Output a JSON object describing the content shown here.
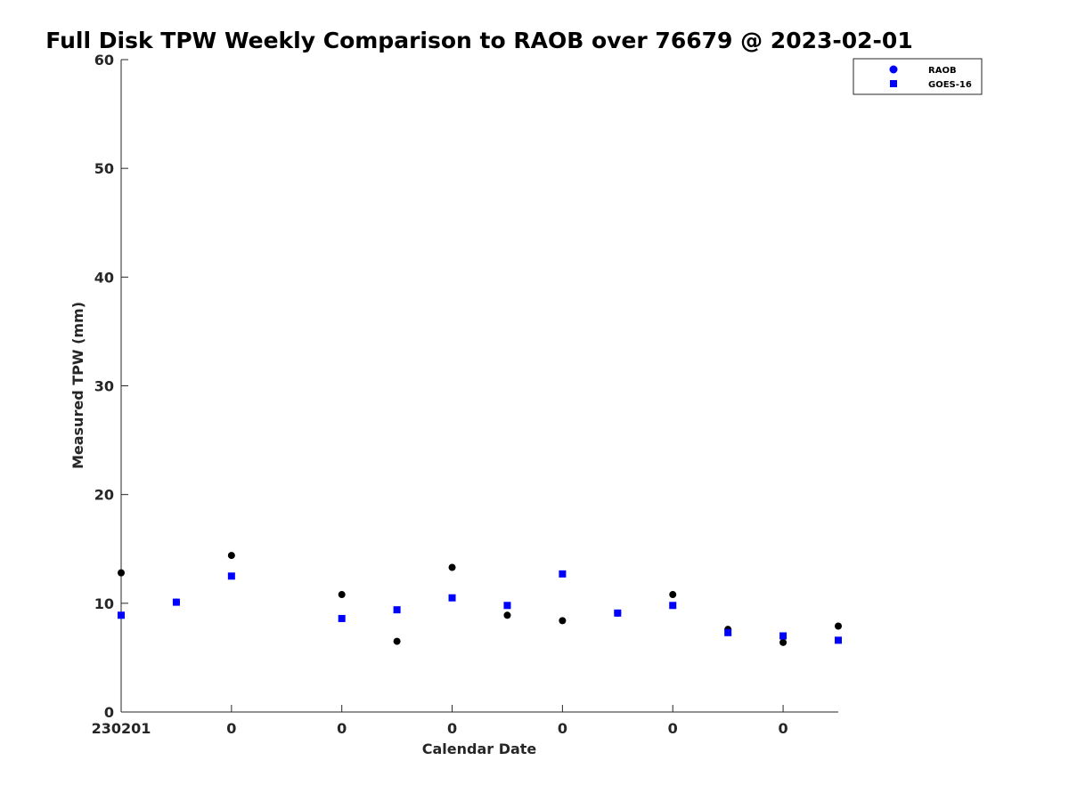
{
  "chart_data": {
    "type": "scatter",
    "title": "Full Disk TPW Weekly Comparison to RAOB over 76679 @ 2023-02-01",
    "xlabel": "Calendar Date",
    "ylabel": "Measured TPW (mm)",
    "ylim": [
      0,
      60
    ],
    "yticks": [
      0,
      10,
      20,
      30,
      40,
      50,
      60
    ],
    "xlim": [
      0,
      13
    ],
    "xticks": [
      0,
      2,
      4,
      6,
      8,
      10,
      12
    ],
    "xtick_labels": [
      "230201",
      "0",
      "0",
      "0",
      "0",
      "0",
      "0"
    ],
    "grid": false,
    "legend_position": "top-right",
    "series": [
      {
        "name": "RAOB",
        "marker": "circle",
        "color": "#000000",
        "legend_color": "#0000ff",
        "x": [
          0,
          1,
          2,
          4,
          5,
          6,
          7,
          8,
          9,
          10,
          11,
          12,
          13
        ],
        "values": [
          12.8,
          10.1,
          14.4,
          10.8,
          6.5,
          13.3,
          8.9,
          8.4,
          9.1,
          10.8,
          7.6,
          6.4,
          7.9
        ]
      },
      {
        "name": "GOES-16",
        "marker": "square",
        "color": "#0000ff",
        "x": [
          0,
          1,
          2,
          4,
          5,
          6,
          7,
          8,
          9,
          10,
          11,
          12,
          13
        ],
        "values": [
          8.9,
          10.1,
          12.5,
          8.6,
          9.4,
          10.5,
          9.8,
          12.7,
          9.1,
          9.8,
          7.3,
          7.0,
          6.6
        ]
      }
    ]
  }
}
